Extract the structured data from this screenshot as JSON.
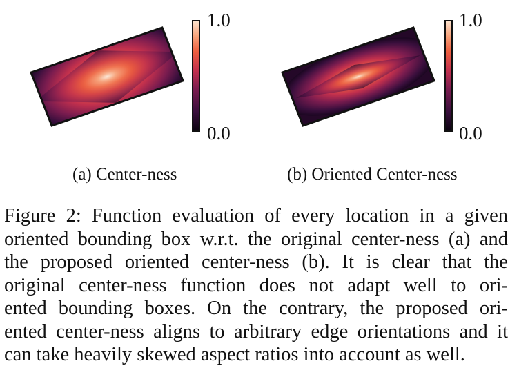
{
  "figure": {
    "panels": [
      {
        "id": "a",
        "subcaption": "(a) Center-ness",
        "colorbar": {
          "max_label": "1.0",
          "min_label": "0.0"
        },
        "heatmap_kind": "center-ness"
      },
      {
        "id": "b",
        "subcaption": "(b) Oriented Center-ness",
        "colorbar": {
          "max_label": "1.0",
          "min_label": "0.0"
        },
        "heatmap_kind": "oriented-center-ness"
      }
    ],
    "colormap": [
      "#0b0310",
      "#3a0f3d",
      "#7a1c4f",
      "#c2304d",
      "#ec5e3f",
      "#f7a27a",
      "#fbe4d0"
    ]
  },
  "caption": {
    "lines": [
      "Figure 2: Function evaluation of every location in a given",
      "oriented bounding box w.r.t. the original center-ness (a) and",
      "the proposed oriented center-ness (b). It is clear that the",
      "original center-ness function does not adapt well to ori-",
      "ented bounding boxes. On the contrary, the proposed ori-",
      "ented center-ness aligns to arbitrary edge orientations and it",
      "can take heavily skewed aspect ratios into account as well."
    ]
  }
}
